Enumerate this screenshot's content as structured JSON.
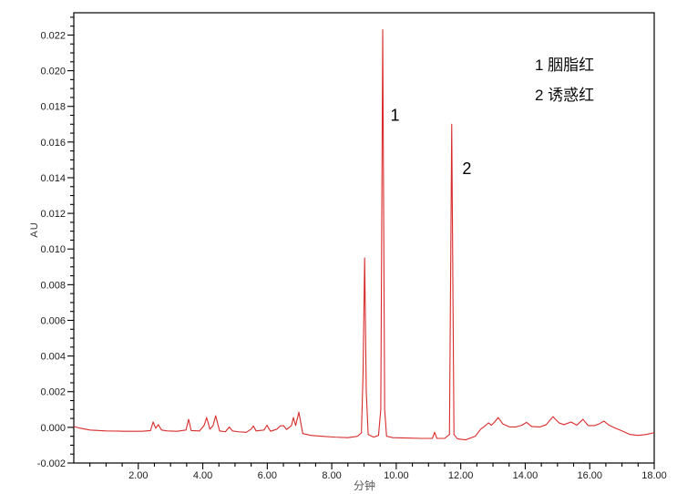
{
  "window": {
    "background": "#ffffff",
    "frame_color": "#000000",
    "tick_label_color": "#1c1c1c"
  },
  "legend": {
    "items": [
      {
        "label": "1 胭脂红"
      },
      {
        "label": "2 诱惑红"
      }
    ]
  },
  "chart_data": {
    "type": "line",
    "title": "",
    "xlabel": "分钟",
    "ylabel": "AU",
    "xlim": [
      0,
      18
    ],
    "ylim": [
      -0.002,
      0.02325
    ],
    "grid": false,
    "legend_position": "top-right-inside",
    "trace_color": "#d92b2b",
    "trace_width": 1.1,
    "x_tick_values": [
      2,
      4,
      6,
      8,
      10,
      12,
      14,
      16,
      18
    ],
    "x_tick_labels": [
      "2.00",
      "4.00",
      "6.00",
      "8.00",
      "10.00",
      "12.00",
      "14.00",
      "16.00",
      "18.00"
    ],
    "x_minor_step": 0.5,
    "y_tick_values": [
      -0.002,
      0,
      0.002,
      0.004,
      0.006,
      0.008,
      0.01,
      0.012,
      0.014,
      0.016,
      0.018,
      0.02,
      0.022
    ],
    "y_tick_labels": [
      "-0.002",
      "0.000",
      "0.002",
      "0.004",
      "0.006",
      "0.008",
      "0.010",
      "0.012",
      "0.014",
      "0.016",
      "0.018",
      "0.020",
      "0.022"
    ],
    "y_minor_step": 0.0005,
    "peaks": [
      {
        "id": "1",
        "name": "胭脂红",
        "retention_min": 9.58,
        "height_au": 0.0223
      },
      {
        "id": "2",
        "name": "诱惑红",
        "retention_min": 11.72,
        "height_au": 0.017
      }
    ],
    "annotations": [
      {
        "text": "1",
        "x": 9.82,
        "y": 0.0172
      },
      {
        "text": "2",
        "x": 12.05,
        "y": 0.0142
      }
    ],
    "series": [
      {
        "name": "chromatogram",
        "points": [
          [
            0.0,
            5e-05
          ],
          [
            0.2,
            -5e-05
          ],
          [
            0.5,
            -0.00015
          ],
          [
            1.0,
            -0.0002
          ],
          [
            1.6,
            -0.00022
          ],
          [
            2.1,
            -0.00022
          ],
          [
            2.38,
            -0.00018
          ],
          [
            2.46,
            0.0003
          ],
          [
            2.54,
            -5e-05
          ],
          [
            2.62,
            0.00015
          ],
          [
            2.72,
            -0.00015
          ],
          [
            2.9,
            -0.0002
          ],
          [
            3.2,
            -0.00022
          ],
          [
            3.48,
            -0.00015
          ],
          [
            3.56,
            0.00045
          ],
          [
            3.64,
            -0.00018
          ],
          [
            3.9,
            -0.0002
          ],
          [
            4.04,
            0.0001
          ],
          [
            4.12,
            0.00055
          ],
          [
            4.22,
            -0.0001
          ],
          [
            4.32,
            0.0001
          ],
          [
            4.4,
            0.00065
          ],
          [
            4.52,
            -0.0002
          ],
          [
            4.7,
            -0.00025
          ],
          [
            4.82,
            2e-05
          ],
          [
            4.92,
            -0.0002
          ],
          [
            5.1,
            -0.00025
          ],
          [
            5.35,
            -0.00028
          ],
          [
            5.5,
            -0.0001
          ],
          [
            5.57,
            8e-05
          ],
          [
            5.65,
            -0.0002
          ],
          [
            5.9,
            -0.00015
          ],
          [
            5.99,
            0.00012
          ],
          [
            6.1,
            -0.00022
          ],
          [
            6.3,
            -0.0001
          ],
          [
            6.4,
            8e-05
          ],
          [
            6.5,
            0.0001
          ],
          [
            6.6,
            -0.00012
          ],
          [
            6.75,
            0.0001
          ],
          [
            6.81,
            0.00055
          ],
          [
            6.88,
            0.0001
          ],
          [
            6.98,
            0.00085
          ],
          [
            7.1,
            -0.00035
          ],
          [
            7.35,
            -0.00045
          ],
          [
            7.7,
            -0.0005
          ],
          [
            8.1,
            -0.00055
          ],
          [
            8.5,
            -0.00058
          ],
          [
            8.8,
            -0.0005
          ],
          [
            8.92,
            -0.0003
          ],
          [
            8.97,
            0.003
          ],
          [
            9.02,
            0.0095
          ],
          [
            9.07,
            0.002
          ],
          [
            9.13,
            -0.0004
          ],
          [
            9.3,
            -0.00055
          ],
          [
            9.45,
            -0.00045
          ],
          [
            9.52,
            0.001
          ],
          [
            9.58,
            0.0223
          ],
          [
            9.64,
            0.001
          ],
          [
            9.7,
            -0.0005
          ],
          [
            9.9,
            -0.00058
          ],
          [
            10.3,
            -0.0006
          ],
          [
            10.8,
            -0.00062
          ],
          [
            11.12,
            -0.00062
          ],
          [
            11.19,
            -0.00028
          ],
          [
            11.26,
            -0.00062
          ],
          [
            11.5,
            -0.00062
          ],
          [
            11.65,
            -0.0004
          ],
          [
            11.72,
            0.017
          ],
          [
            11.79,
            -0.0004
          ],
          [
            11.9,
            -0.00065
          ],
          [
            12.15,
            -0.0007
          ],
          [
            12.45,
            -0.0005
          ],
          [
            12.62,
            -0.0001
          ],
          [
            12.78,
            0.00012
          ],
          [
            12.86,
            0.00025
          ],
          [
            12.95,
            0.00012
          ],
          [
            13.05,
            0.0003
          ],
          [
            13.16,
            0.00055
          ],
          [
            13.3,
            0.0002
          ],
          [
            13.5,
            3e-05
          ],
          [
            13.7,
            2e-05
          ],
          [
            13.9,
            0.00012
          ],
          [
            14.04,
            0.00028
          ],
          [
            14.2,
            5e-05
          ],
          [
            14.45,
            2e-05
          ],
          [
            14.65,
            0.00015
          ],
          [
            14.86,
            0.0006
          ],
          [
            15.05,
            0.00025
          ],
          [
            15.2,
            0.00015
          ],
          [
            15.42,
            0.0003
          ],
          [
            15.6,
            0.00012
          ],
          [
            15.79,
            0.00045
          ],
          [
            15.95,
            0.0001
          ],
          [
            16.15,
            0.0001
          ],
          [
            16.3,
            0.0002
          ],
          [
            16.44,
            0.00035
          ],
          [
            16.6,
            0.00012
          ],
          [
            16.8,
            -5e-05
          ],
          [
            17.0,
            -0.0002
          ],
          [
            17.25,
            -0.0004
          ],
          [
            17.5,
            -0.00045
          ],
          [
            17.75,
            -0.0004
          ],
          [
            18.0,
            -0.0003
          ]
        ]
      }
    ]
  }
}
